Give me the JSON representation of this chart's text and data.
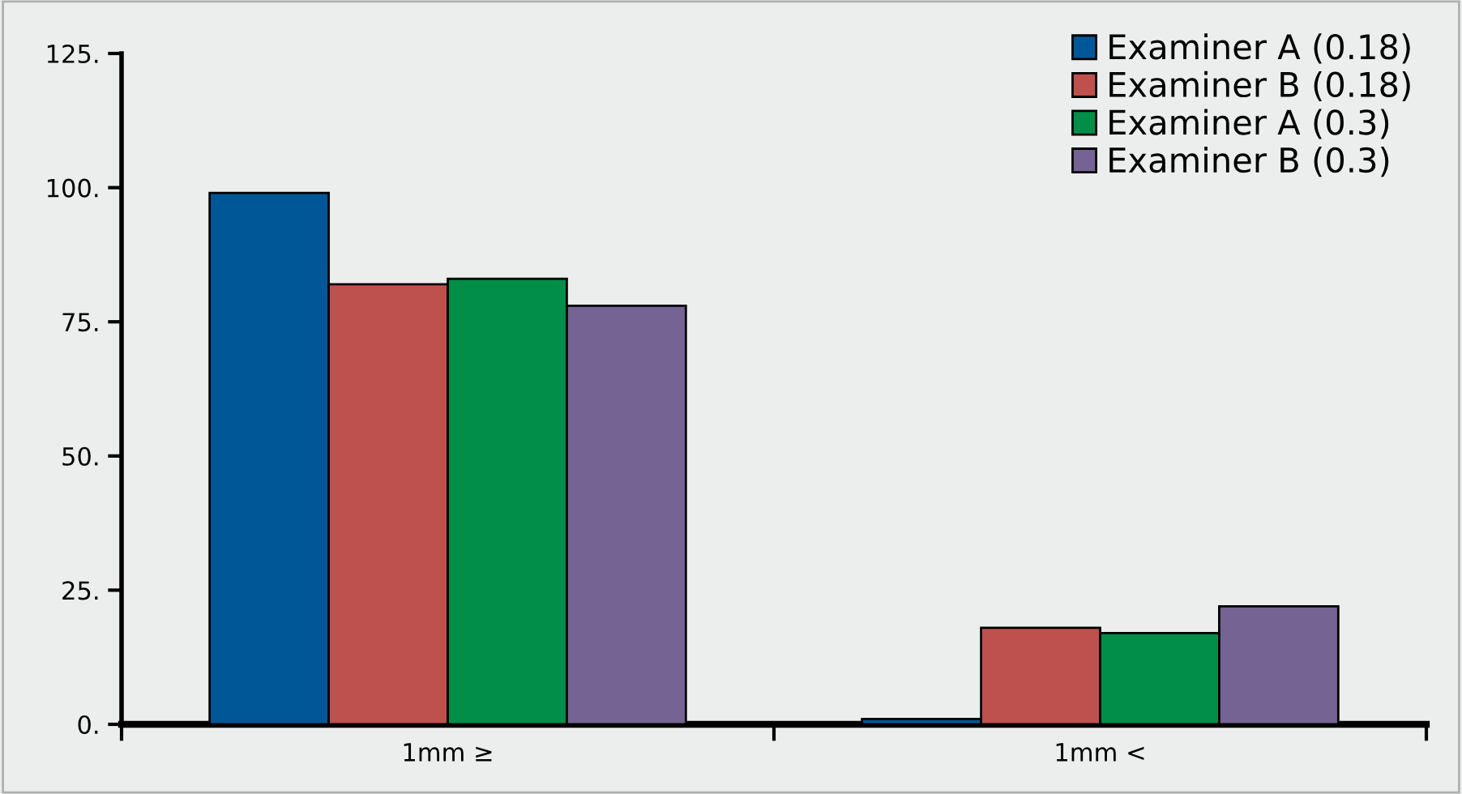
{
  "chart_data": {
    "type": "bar",
    "categories": [
      "1mm ≥",
      "1mm <"
    ],
    "series": [
      {
        "name": "Examiner A (0.18)",
        "color": "#005797",
        "values": [
          99,
          1
        ]
      },
      {
        "name": "Examiner B (0.18)",
        "color": "#be514e",
        "values": [
          82,
          18
        ]
      },
      {
        "name": "Examiner A (0.3)",
        "color": "#008e49",
        "values": [
          83,
          17
        ]
      },
      {
        "name": "Examiner B (0.3)",
        "color": "#756394",
        "values": [
          78,
          22
        ]
      }
    ],
    "ylim": [
      0,
      125
    ],
    "yticks": [
      {
        "value": 0,
        "label": "0."
      },
      {
        "value": 25,
        "label": "25."
      },
      {
        "value": 50,
        "label": "50."
      },
      {
        "value": 75,
        "label": "75."
      },
      {
        "value": 100,
        "label": "100."
      },
      {
        "value": 125,
        "label": "125."
      }
    ],
    "grid": false,
    "legend": "top right"
  }
}
